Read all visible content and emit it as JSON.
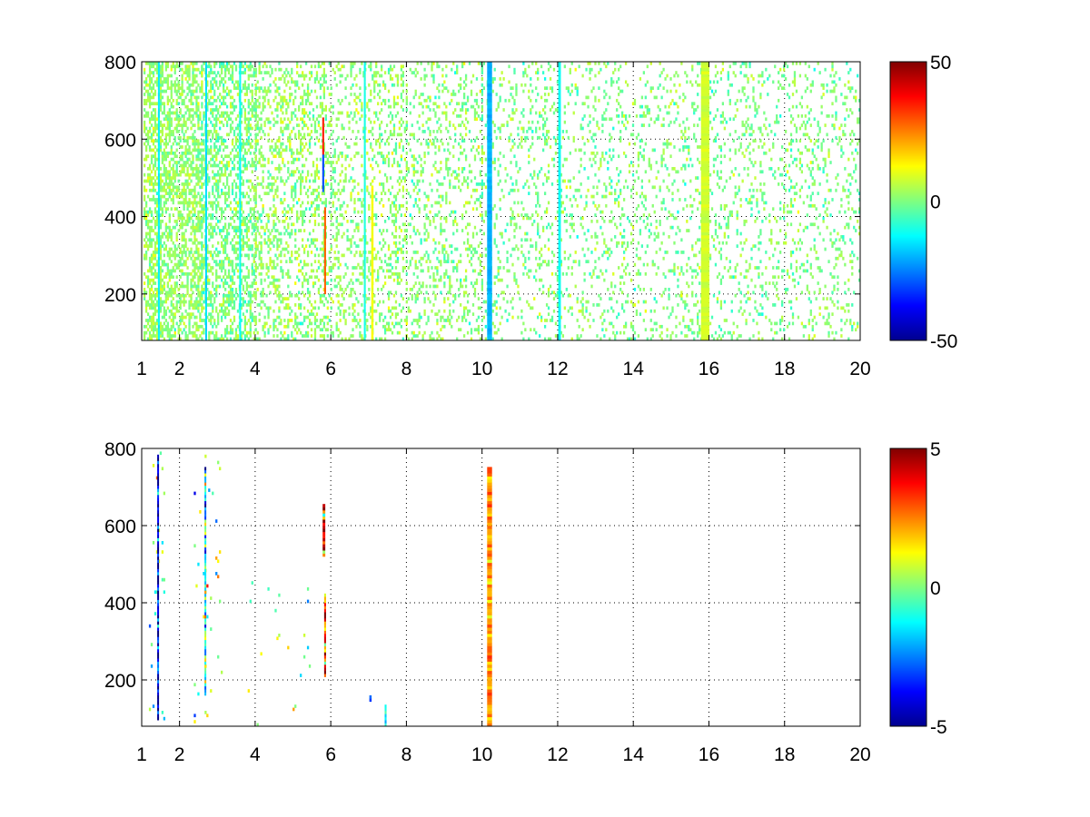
{
  "figure": {
    "background": "#ffffff"
  },
  "chart_data": [
    {
      "type": "heatmap",
      "colormap": "jet",
      "x_ticks": [
        "1",
        "2",
        "4",
        "6",
        "8",
        "10",
        "12",
        "14",
        "16",
        "18",
        "20"
      ],
      "y_ticks": [
        "200",
        "400",
        "600",
        "800"
      ],
      "xlim": [
        1,
        20
      ],
      "ylim": [
        80,
        800
      ],
      "grid": true,
      "colorbar": {
        "clim": [
          -50,
          50
        ],
        "ticks": [
          "-50",
          "0",
          "50"
        ]
      },
      "scatter_seed": 7,
      "bands": [
        {
          "x0": 1.05,
          "x1": 1.5,
          "y0": 80,
          "y1": 800,
          "density": 0.55,
          "mean": 3,
          "sd": 5
        },
        {
          "x0": 1.5,
          "x1": 2.6,
          "y0": 80,
          "y1": 800,
          "density": 0.5,
          "mean": 2,
          "sd": 5
        },
        {
          "x0": 2.6,
          "x1": 4.0,
          "y0": 80,
          "y1": 800,
          "density": 0.42,
          "mean": 0,
          "sd": 6
        },
        {
          "x0": 4.0,
          "x1": 5.8,
          "y0": 80,
          "y1": 800,
          "density": 0.3,
          "mean": 2,
          "sd": 6
        },
        {
          "x0": 5.8,
          "x1": 8.0,
          "y0": 80,
          "y1": 800,
          "density": 0.22,
          "mean": 2,
          "sd": 6
        },
        {
          "x0": 8.0,
          "x1": 10.0,
          "y0": 80,
          "y1": 800,
          "density": 0.2,
          "mean": 1,
          "sd": 6
        },
        {
          "x0": 10.0,
          "x1": 20.0,
          "y0": 80,
          "y1": 800,
          "density": 0.14,
          "mean": 0,
          "sd": 6
        }
      ],
      "stripes": [
        {
          "x": 1.45,
          "y0": 80,
          "y1": 800,
          "value": -14,
          "width": 0.04
        },
        {
          "x": 2.7,
          "y0": 80,
          "y1": 800,
          "value": -16,
          "width": 0.04
        },
        {
          "x": 3.6,
          "y0": 80,
          "y1": 800,
          "value": -12,
          "width": 0.04
        },
        {
          "x": 5.8,
          "y0": 560,
          "y1": 650,
          "value": 35,
          "width": 0.05
        },
        {
          "x": 5.8,
          "y0": 470,
          "y1": 560,
          "value": -30,
          "width": 0.05
        },
        {
          "x": 5.85,
          "y0": 200,
          "y1": 420,
          "value": 28,
          "width": 0.05
        },
        {
          "x": 6.9,
          "y0": 80,
          "y1": 800,
          "value": -10,
          "width": 0.05
        },
        {
          "x": 7.1,
          "y0": 80,
          "y1": 480,
          "value": 12,
          "width": 0.06
        },
        {
          "x": 10.2,
          "y0": 80,
          "y1": 800,
          "value": -20,
          "width": 0.13
        },
        {
          "x": 12.05,
          "y0": 80,
          "y1": 800,
          "value": -12,
          "width": 0.07
        },
        {
          "x": 15.9,
          "y0": 80,
          "y1": 800,
          "value": 8,
          "width": 0.22
        }
      ]
    },
    {
      "type": "heatmap",
      "colormap": "jet",
      "x_ticks": [
        "1",
        "2",
        "4",
        "6",
        "8",
        "10",
        "12",
        "14",
        "16",
        "18",
        "20"
      ],
      "y_ticks": [
        "200",
        "400",
        "600",
        "800"
      ],
      "xlim": [
        1,
        20
      ],
      "ylim": [
        80,
        800
      ],
      "grid": true,
      "colorbar": {
        "clim": [
          -5,
          5
        ],
        "ticks": [
          "-5",
          "0",
          "5"
        ]
      },
      "scatter_seed": 13,
      "bands": [
        {
          "x0": 1.2,
          "x1": 1.6,
          "y0": 80,
          "y1": 800,
          "density": 0.03,
          "mean": 0,
          "sd": 2
        },
        {
          "x0": 2.4,
          "x1": 3.2,
          "y0": 80,
          "y1": 800,
          "density": 0.02,
          "mean": 0,
          "sd": 2
        },
        {
          "x0": 3.4,
          "x1": 5.5,
          "y0": 80,
          "y1": 450,
          "density": 0.008,
          "mean": 0,
          "sd": 1.5
        }
      ],
      "stripes": [
        {
          "x": 1.43,
          "y0": 100,
          "y1": 780,
          "value": -4.5,
          "noise": 2.5,
          "width": 0.04
        },
        {
          "x": 2.68,
          "y0": 160,
          "y1": 750,
          "value": -1,
          "noise": 2.5,
          "width": 0.04
        },
        {
          "x": 5.82,
          "y0": 520,
          "y1": 650,
          "value": 3.5,
          "noise": 3.5,
          "width": 0.07
        },
        {
          "x": 5.85,
          "y0": 210,
          "y1": 420,
          "value": 2.5,
          "noise": 2.5,
          "width": 0.05
        },
        {
          "x": 7.45,
          "y0": 80,
          "y1": 135,
          "value": -1.5,
          "noise": 1,
          "width": 0.05
        },
        {
          "x": 7.05,
          "y0": 150,
          "y1": 160,
          "value": -3,
          "noise": 0.5,
          "width": 0.06
        },
        {
          "x": 10.2,
          "y0": 80,
          "y1": 750,
          "value": 2.2,
          "noise": 0.8,
          "width": 0.13
        }
      ]
    }
  ]
}
